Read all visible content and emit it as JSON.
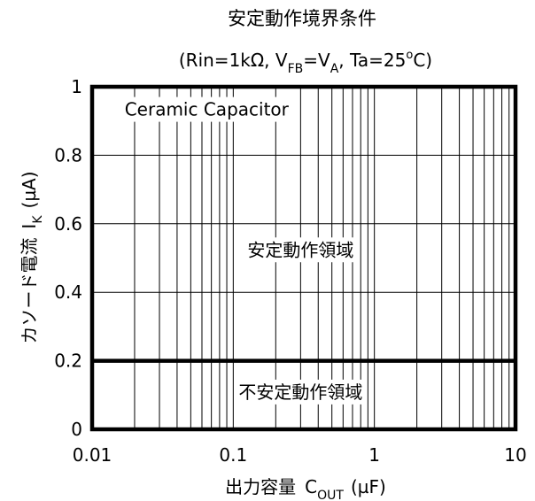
{
  "chart_data": {
    "type": "area",
    "title": "安定動作境界条件",
    "subtitle": {
      "open": "(Rin=1kΩ, V",
      "vfb_sub": "FB",
      "eq_v": "=V",
      "va_sub": "A",
      "ta": ", Ta=25",
      "deg": "o",
      "close": "C)"
    },
    "xlabel": {
      "main": "出力容量",
      "symbol": "C",
      "sub": "OUT",
      "unit": "(µF)"
    },
    "ylabel": {
      "main": "カソード電流",
      "symbol": "I",
      "sub": "K",
      "unit": "(µA)"
    },
    "x_scale": "log",
    "xlim": [
      0.01,
      10
    ],
    "ylim": [
      0,
      1
    ],
    "x_ticks": [
      {
        "value": 0.01,
        "label": "0.01"
      },
      {
        "value": 0.1,
        "label": "0.1"
      },
      {
        "value": 1,
        "label": "1"
      },
      {
        "value": 10,
        "label": "10"
      }
    ],
    "y_ticks": [
      {
        "value": 0,
        "label": "0"
      },
      {
        "value": 0.2,
        "label": "0.2"
      },
      {
        "value": 0.4,
        "label": "0.4"
      },
      {
        "value": 0.6,
        "label": "0.6"
      },
      {
        "value": 0.8,
        "label": "0.8"
      },
      {
        "value": 1,
        "label": "1"
      }
    ],
    "grid": true,
    "boundary": {
      "y": 0.2,
      "x_range": [
        0.01,
        10
      ]
    },
    "annotations": [
      {
        "text": "Ceramic Capacitor",
        "x": 0.017,
        "y": 0.93
      },
      {
        "text": "安定動作領域",
        "x": 0.3,
        "y": 0.52
      },
      {
        "text": "不安定動作領域",
        "x": 0.3,
        "y": 0.105
      }
    ]
  }
}
